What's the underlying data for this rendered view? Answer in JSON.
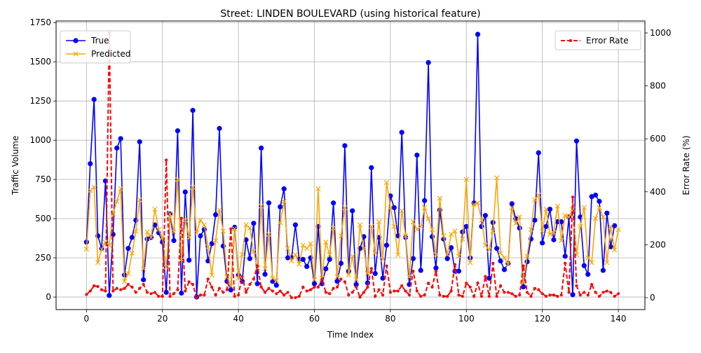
{
  "chart_data": {
    "type": "line",
    "title": "Street: LINDEN BOULEVARD (using historical feature)",
    "xlabel": "Time Index",
    "ylabel": "Traffic Volume",
    "y2label": "Error Rate (%)",
    "xlim": [
      -8,
      147
    ],
    "ylim": [
      -80,
      1760
    ],
    "y2lim": [
      -45,
      1045
    ],
    "x_ticks": [
      0,
      20,
      40,
      60,
      80,
      100,
      120,
      140
    ],
    "y_ticks": [
      0,
      250,
      500,
      750,
      1000,
      1250,
      1500,
      1750
    ],
    "y2_ticks": [
      0,
      200,
      400,
      600,
      800,
      1000
    ],
    "grid": true,
    "legend_left": "upper-left",
    "legend_right": "upper-right",
    "series": [
      {
        "name": "True",
        "axis": "left",
        "color": "#0000ff",
        "marker": "circle",
        "values": [
          350,
          850,
          1260,
          390,
          310,
          740,
          10,
          400,
          950,
          1010,
          140,
          310,
          380,
          490,
          990,
          110,
          370,
          380,
          460,
          410,
          350,
          30,
          530,
          360,
          1060,
          25,
          670,
          235,
          1190,
          0,
          390,
          430,
          230,
          340,
          525,
          1075,
          325,
          100,
          45,
          445,
          140,
          100,
          365,
          245,
          470,
          85,
          950,
          145,
          600,
          100,
          75,
          575,
          690,
          250,
          250,
          460,
          240,
          240,
          195,
          250,
          85,
          450,
          85,
          180,
          240,
          600,
          100,
          215,
          965,
          165,
          550,
          80,
          310,
          385,
          90,
          825,
          150,
          380,
          120,
          330,
          645,
          570,
          390,
          1050,
          380,
          80,
          245,
          905,
          170,
          615,
          1495,
          385,
          185,
          555,
          370,
          245,
          315,
          165,
          165,
          415,
          450,
          250,
          600,
          1675,
          450,
          520,
          120,
          475,
          310,
          230,
          175,
          215,
          595,
          500,
          440,
          65,
          225,
          370,
          490,
          920,
          345,
          450,
          560,
          365,
          480,
          480,
          260,
          510,
          15,
          995,
          510,
          200,
          145,
          640,
          650,
          610,
          170,
          535,
          320,
          455
        ]
      },
      {
        "name": "Predicted",
        "axis": "left",
        "color": "#ffa500",
        "marker": "x",
        "values": [
          305,
          680,
          700,
          220,
          305,
          350,
          330,
          530,
          610,
          690,
          100,
          150,
          280,
          420,
          620,
          180,
          415,
          380,
          560,
          430,
          380,
          190,
          530,
          415,
          750,
          240,
          490,
          380,
          700,
          410,
          490,
          460,
          320,
          140,
          360,
          555,
          420,
          130,
          70,
          435,
          120,
          270,
          460,
          440,
          290,
          185,
          580,
          180,
          400,
          120,
          105,
          475,
          610,
          310,
          230,
          270,
          210,
          330,
          310,
          340,
          110,
          690,
          120,
          350,
          270,
          440,
          130,
          390,
          570,
          140,
          260,
          110,
          460,
          310,
          150,
          450,
          280,
          480,
          240,
          730,
          570,
          450,
          270,
          550,
          390,
          130,
          480,
          430,
          450,
          570,
          500,
          430,
          270,
          630,
          390,
          270,
          400,
          420,
          260,
          370,
          750,
          220,
          590,
          600,
          490,
          330,
          300,
          420,
          760,
          280,
          250,
          210,
          570,
          470,
          510,
          90,
          260,
          430,
          620,
          650,
          420,
          560,
          400,
          410,
          580,
          360,
          520,
          510,
          560,
          270,
          450,
          570,
          250,
          220,
          500,
          570,
          510,
          220,
          450,
          300,
          430
        ]
      },
      {
        "name": "Error Rate",
        "axis": "right",
        "color": "#ff0000",
        "marker": "dot",
        "dashed": true,
        "values": [
          12,
          25,
          45,
          42,
          30,
          25,
          1000,
          25,
          35,
          30,
          35,
          50,
          40,
          20,
          35,
          50,
          20,
          15,
          20,
          5,
          5,
          520,
          5,
          15,
          30,
          300,
          25,
          60,
          50,
          0,
          10,
          10,
          70,
          40,
          10,
          35,
          20,
          30,
          260,
          5,
          10,
          80,
          20,
          50,
          70,
          120,
          40,
          20,
          35,
          25,
          15,
          25,
          10,
          20,
          0,
          0,
          5,
          40,
          25,
          30,
          40,
          40,
          70,
          20,
          15,
          35,
          40,
          70,
          60,
          10,
          20,
          40,
          2,
          20,
          40,
          110,
          5,
          30,
          10,
          120,
          20,
          25,
          25,
          45,
          25,
          10,
          100,
          25,
          5,
          10,
          55,
          40,
          100,
          10,
          5,
          5,
          25,
          125,
          10,
          5,
          55,
          40,
          5,
          55,
          5,
          80,
          5,
          130,
          5,
          45,
          20,
          20,
          15,
          5,
          10,
          120,
          20,
          5,
          35,
          30,
          15,
          5,
          10,
          10,
          5,
          10,
          130,
          20,
          380,
          45,
          10,
          20,
          10,
          50,
          20,
          5,
          20,
          25,
          20,
          5,
          15
        ]
      }
    ]
  }
}
